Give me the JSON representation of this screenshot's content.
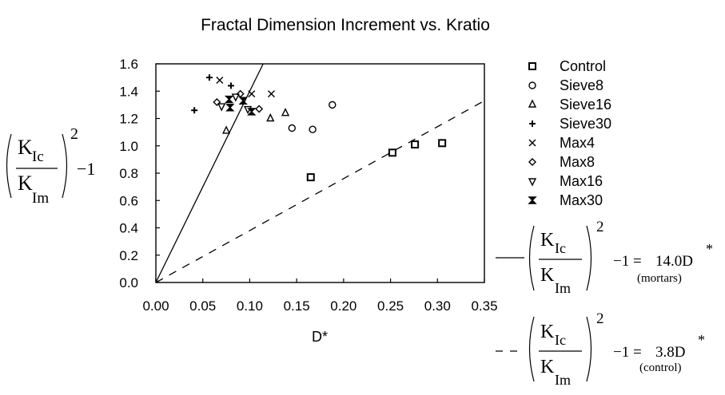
{
  "chart_data": {
    "type": "scatter",
    "title": "Fractal Dimension Increment vs. Kratio",
    "xlabel": "D*",
    "ylabel": {
      "numerator": "K",
      "numerator_sub": "Ic",
      "denominator": "K",
      "denominator_sub": "Im",
      "exponent": "2",
      "suffix": "−1"
    },
    "xlim": [
      0.0,
      0.35
    ],
    "ylim": [
      0.0,
      1.6
    ],
    "xticks": [
      "0.00",
      "0.05",
      "0.10",
      "0.15",
      "0.20",
      "0.25",
      "0.30",
      "0.35"
    ],
    "yticks": [
      "0.0",
      "0.2",
      "0.4",
      "0.6",
      "0.8",
      "1.0",
      "1.2",
      "1.4",
      "1.6"
    ],
    "grid": false,
    "legend_position": "right",
    "series": [
      {
        "name": "Control",
        "marker": "square",
        "points": [
          [
            0.165,
            0.77
          ],
          [
            0.252,
            0.95
          ],
          [
            0.276,
            1.01
          ],
          [
            0.305,
            1.02
          ]
        ]
      },
      {
        "name": "Sieve8",
        "marker": "circle",
        "points": [
          [
            0.145,
            1.13
          ],
          [
            0.167,
            1.12
          ],
          [
            0.188,
            1.3
          ]
        ]
      },
      {
        "name": "Sieve16",
        "marker": "triangle-up",
        "points": [
          [
            0.075,
            1.11
          ],
          [
            0.122,
            1.2
          ],
          [
            0.138,
            1.24
          ]
        ]
      },
      {
        "name": "Sieve30",
        "marker": "plus",
        "points": [
          [
            0.041,
            1.26
          ],
          [
            0.057,
            1.5
          ],
          [
            0.08,
            1.44
          ]
        ]
      },
      {
        "name": "Max4",
        "marker": "x",
        "points": [
          [
            0.068,
            1.48
          ],
          [
            0.102,
            1.38
          ],
          [
            0.123,
            1.38
          ]
        ]
      },
      {
        "name": "Max8",
        "marker": "diamond",
        "points": [
          [
            0.065,
            1.32
          ],
          [
            0.09,
            1.38
          ],
          [
            0.11,
            1.27
          ]
        ]
      },
      {
        "name": "Max16",
        "marker": "triangle-down",
        "points": [
          [
            0.07,
            1.29
          ],
          [
            0.085,
            1.36
          ],
          [
            0.098,
            1.27
          ]
        ]
      },
      {
        "name": "Max30",
        "marker": "hourglass",
        "points": [
          [
            0.078,
            1.34
          ],
          [
            0.079,
            1.28
          ],
          [
            0.093,
            1.33
          ],
          [
            0.102,
            1.25
          ]
        ]
      }
    ],
    "fit_lines": [
      {
        "style": "solid",
        "slope": 14.0,
        "equation": {
          "lhs_suffix": "−1 =",
          "rhs": "14.0D",
          "rhs_sup": "*",
          "note": "(mortars)"
        }
      },
      {
        "style": "dashed",
        "slope": 3.8,
        "equation": {
          "lhs_suffix": "−1 =",
          "rhs": "3.8D",
          "rhs_sup": "*",
          "note": "(control)"
        }
      }
    ]
  }
}
